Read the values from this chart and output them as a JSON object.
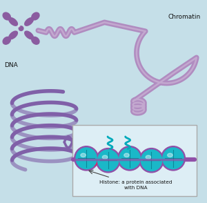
{
  "background_color": "#c5dfe8",
  "fig_width": 3.0,
  "fig_height": 2.94,
  "dpi": 100,
  "chromatin_label": "Chromatin",
  "dna_label": "DNA",
  "histone_label": "Histone: a protein associated\nwith DNA",
  "chromosome_color": "#8b5ca0",
  "chromatin_color": "#b08cc0",
  "chromatin_tube_color": "#c0a0d0",
  "dna_helix_color": "#8060a8",
  "histone_fill_color": "#1ab8c8",
  "histone_border_color": "#9050a8",
  "inset_bg": "#ddeef5",
  "inset_border": "#aaaaaa",
  "text_color": "#111111",
  "pink_accent": "#e0206a",
  "teal_tail": "#00aabb"
}
